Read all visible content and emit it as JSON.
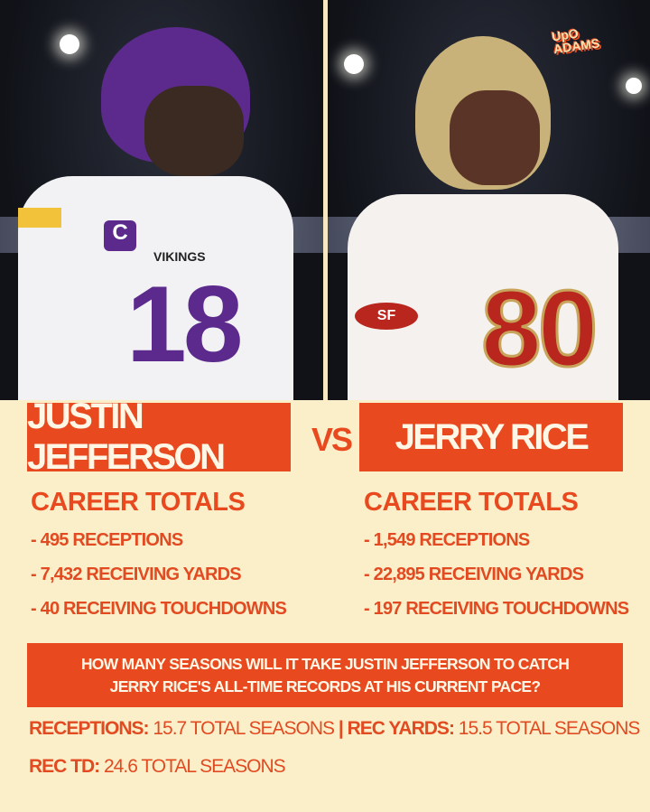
{
  "logo": {
    "line1": "UpO",
    "line2": "ADAMS"
  },
  "photos": {
    "left": {
      "jersey_number": "18",
      "team": "VIKINGS",
      "captain_patch": "C",
      "helmet_color": "#5b2a8c"
    },
    "right": {
      "jersey_number": "80",
      "team_patch": "SF",
      "helmet_color": "#c8b27a"
    }
  },
  "players": [
    {
      "name": "JUSTIN JEFFERSON",
      "heading": "CAREER TOTALS",
      "stats": [
        "- 495 RECEPTIONS",
        "- 7,432 RECEIVING YARDS",
        "- 40 RECEIVING TOUCHDOWNS"
      ]
    },
    {
      "name": "JERRY RICE",
      "heading": "CAREER TOTALS",
      "stats": [
        "- 1,549 RECEPTIONS",
        "- 22,895 RECEIVING YARDS",
        "- 197 RECEIVING TOUCHDOWNS"
      ]
    }
  ],
  "vs": "VS",
  "question": {
    "line1": "HOW MANY SEASONS WILL IT TAKE JUSTIN JEFFERSON TO CATCH",
    "line2": "JERRY RICE'S ALL-TIME RECORDS AT HIS CURRENT PACE?"
  },
  "results": {
    "rec_label": "RECEPTIONS:",
    "rec_value": " 15.7 TOTAL SEASONS ",
    "sep": "| ",
    "yds_label": "REC YARDS:",
    "yds_value": " 15.5 TOTAL SEASONS",
    "td_label": "REC TD:",
    "td_value": " 24.6 TOTAL SEASONS"
  },
  "colors": {
    "accent": "#e8491f",
    "background": "#fbefc9"
  }
}
